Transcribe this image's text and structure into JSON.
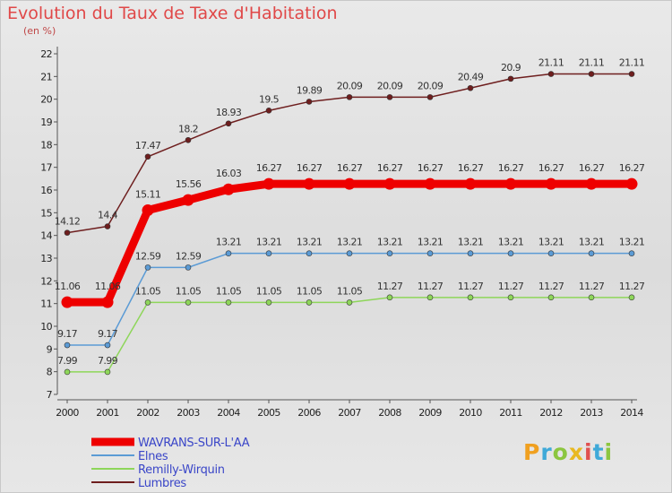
{
  "page": {
    "title": "Evolution du Taux de Taxe d'Habitation",
    "subtitle": "(en %)"
  },
  "logo": {
    "letters": [
      "P",
      "r",
      "o",
      "x",
      "i",
      "t",
      "i"
    ],
    "colors": [
      "#f0a020",
      "#3fa9d8",
      "#8cc63f",
      "#e8b820",
      "#e05050",
      "#3fa9d8",
      "#8cc63f"
    ]
  },
  "chart_data": {
    "type": "line",
    "x": [
      "2000",
      "2001",
      "2002",
      "2003",
      "2004",
      "2005",
      "2006",
      "2007",
      "2008",
      "2009",
      "2010",
      "2011",
      "2012",
      "2013",
      "2014"
    ],
    "ylim": [
      7,
      22
    ],
    "yticks": [
      "7",
      "8",
      "9",
      "10",
      "11",
      "12",
      "13",
      "14",
      "15",
      "16",
      "17",
      "18",
      "19",
      "20",
      "21",
      "22"
    ],
    "grid": false,
    "legend_position": "bottom-left",
    "series": [
      {
        "name": "Lumbres",
        "color": "#6e1e1e",
        "values": [
          14.12,
          14.4,
          17.47,
          18.2,
          18.93,
          19.5,
          19.89,
          20.09,
          20.09,
          20.09,
          20.49,
          20.9,
          21.11,
          21.11,
          21.11
        ],
        "labels": [
          "14.12",
          "14.4",
          "17.47",
          "18.2",
          "18.93",
          "19.5",
          "19.89",
          "20.09",
          "20.09",
          "20.09",
          "20.49",
          "20.9",
          "21.11",
          "21.11",
          "21.11"
        ]
      },
      {
        "name": "Remilly-Wirquin",
        "color": "#8ed65a",
        "values": [
          7.99,
          7.99,
          11.05,
          11.05,
          11.05,
          11.05,
          11.05,
          11.05,
          11.27,
          11.27,
          11.27,
          11.27,
          11.27,
          11.27,
          11.27
        ],
        "labels": [
          "7.99",
          "7.99",
          "11.05",
          "11.05",
          "11.05",
          "11.05",
          "11.05",
          "11.05",
          "11.27",
          "11.27",
          "11.27",
          "11.27",
          "11.27",
          "11.27",
          "11.27"
        ]
      },
      {
        "name": "Elnes",
        "color": "#5b9bd5",
        "values": [
          9.17,
          9.17,
          12.59,
          12.59,
          13.21,
          13.21,
          13.21,
          13.21,
          13.21,
          13.21,
          13.21,
          13.21,
          13.21,
          13.21,
          13.21
        ],
        "labels": [
          "9.17",
          "9.17",
          "12.59",
          "12.59",
          "13.21",
          "13.21",
          "13.21",
          "13.21",
          "13.21",
          "13.21",
          "13.21",
          "13.21",
          "13.21",
          "13.21",
          "13.21"
        ]
      },
      {
        "name": "WAVRANS-SUR-L'AA",
        "color": "#ee0000",
        "values": [
          11.06,
          11.06,
          15.11,
          15.56,
          16.03,
          16.27,
          16.27,
          16.27,
          16.27,
          16.27,
          16.27,
          16.27,
          16.27,
          16.27,
          16.27
        ],
        "labels": [
          "11.06",
          "11.06",
          "15.11",
          "15.56",
          "16.03",
          "16.27",
          "16.27",
          "16.27",
          "16.27",
          "16.27",
          "16.27",
          "16.27",
          "16.27",
          "16.27",
          "16.27"
        ]
      }
    ],
    "legend": [
      "WAVRANS-SUR-L'AA",
      "Elnes",
      "Remilly-Wirquin",
      "Lumbres"
    ]
  }
}
